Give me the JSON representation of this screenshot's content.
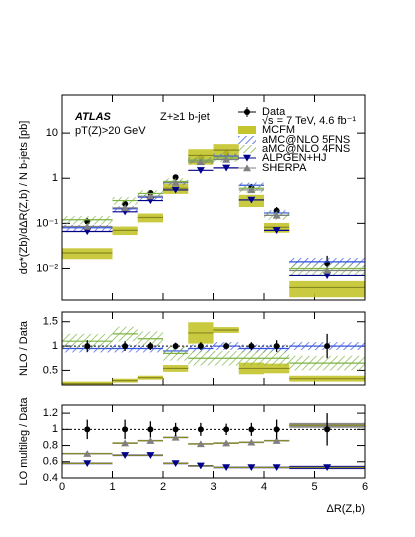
{
  "chart_data": [
    {
      "type": "step",
      "title": "ATLAS",
      "subtitle": "Z+≥1 b-jet",
      "annotation": "pT(Z)>20 GeV",
      "energy": "√s = 7 TeV, 4.6 fb⁻¹",
      "ylabel": "dσ*(Zb)/dΔR(Z,b) / N b-jets [pb]",
      "log_y": true,
      "xlim": [
        0,
        6
      ],
      "ylim": [
        0.002,
        70
      ],
      "yticks": [
        {
          "value": 0.01,
          "label": "10⁻²"
        },
        {
          "value": 0.1,
          "label": "10⁻¹"
        },
        1,
        10
      ],
      "bins": [
        0,
        1,
        1.5,
        2,
        2.5,
        3,
        3.5,
        4,
        4.5,
        6
      ],
      "x": [
        0.5,
        1.25,
        1.75,
        2.25,
        2.75,
        3.25,
        3.75,
        4.25,
        5.25
      ],
      "series": [
        {
          "name": "Data",
          "color": "#000000",
          "marker": "circle",
          "values": [
            0.11,
            0.27,
            0.47,
            1.05,
            2.9,
            3.6,
            0.63,
            0.19,
            0.013
          ],
          "errors": [
            0.02,
            0.05,
            0.08,
            0.15,
            0.6,
            0.8,
            0.12,
            0.04,
            0.006
          ]
        },
        {
          "name": "MCFM",
          "color": "#c4c42c",
          "fill": true,
          "values": [
            0.022,
            0.07,
            0.135,
            0.6,
            3.2,
            4.2,
            0.33,
            0.082,
            0.0038
          ],
          "errors": [
            0.006,
            0.015,
            0.03,
            0.15,
            1.2,
            1.5,
            0.1,
            0.02,
            0.0015
          ]
        },
        {
          "name": "aMC@NLO 5FNS",
          "color": "#3050e0",
          "hatch": true,
          "values": [
            0.08,
            0.21,
            0.38,
            0.8,
            2.5,
            3.1,
            0.7,
            0.17,
            0.014
          ],
          "errors": [
            0.012,
            0.03,
            0.05,
            0.1,
            0.35,
            0.4,
            0.1,
            0.025,
            0.003
          ]
        },
        {
          "name": "aMC@NLO 4FNS",
          "color": "#7cb342",
          "hatch": true,
          "values": [
            0.12,
            0.32,
            0.46,
            0.85,
            2.5,
            2.8,
            0.6,
            0.15,
            0.01
          ],
          "errors": [
            0.025,
            0.06,
            0.08,
            0.15,
            0.5,
            0.5,
            0.12,
            0.03,
            0.003
          ]
        },
        {
          "name": "ALPGEN+HJ",
          "color": "#00008b",
          "marker": "triangle-down",
          "values": [
            0.066,
            0.18,
            0.32,
            0.55,
            1.5,
            1.7,
            0.33,
            0.07,
            0.007
          ]
        },
        {
          "name": "SHERPA",
          "color": "#808080",
          "marker": "triangle-up",
          "values": [
            0.085,
            0.22,
            0.4,
            0.8,
            2.3,
            2.6,
            0.55,
            0.15,
            0.009
          ]
        }
      ]
    },
    {
      "type": "step",
      "ylabel": "NLO / Data",
      "xlim": [
        0,
        6
      ],
      "ylim": [
        0.2,
        1.7
      ],
      "yticks": [
        0.5,
        1,
        1.5
      ],
      "hline": 1,
      "bins": [
        0,
        1,
        1.5,
        2,
        2.5,
        3,
        3.5,
        4,
        4.5,
        6
      ],
      "x": [
        0.5,
        1.25,
        1.75,
        2.25,
        2.75,
        3.25,
        3.75,
        4.25,
        5.25
      ],
      "series": [
        {
          "color": "#c4c42c",
          "fill": true,
          "values": [
            0.23,
            0.29,
            0.35,
            0.54,
            1.27,
            1.33,
            0.54,
            0.54,
            0.33
          ],
          "errors": [
            0.04,
            0.04,
            0.04,
            0.07,
            0.22,
            0.06,
            0.12,
            0.1,
            0.06
          ]
        },
        {
          "color": "#3050e0",
          "hatch": true,
          "values": [
            0.95,
            0.95,
            0.95,
            0.9,
            0.95,
            1.0,
            0.95,
            0.95,
            1.0
          ],
          "errors": [
            0.08,
            0.08,
            0.08,
            0.08,
            0.08,
            0.08,
            0.08,
            0.08,
            0.08
          ]
        },
        {
          "color": "#7cb342",
          "hatch": true,
          "values": [
            1.1,
            1.25,
            1.15,
            0.85,
            0.75,
            0.75,
            0.75,
            0.75,
            0.65
          ],
          "errors": [
            0.15,
            0.15,
            0.15,
            0.15,
            0.15,
            0.15,
            0.15,
            0.15,
            0.15
          ]
        },
        {
          "color": "#000000",
          "marker": "circle",
          "values": [
            1,
            1,
            1,
            1,
            1,
            1,
            1,
            1,
            1
          ],
          "errors": [
            0.12,
            0.1,
            0.08,
            0.07,
            0.08,
            0.07,
            0.08,
            0.12,
            0.25
          ]
        }
      ]
    },
    {
      "type": "step",
      "ylabel": "LO multileg / Data",
      "xlabel": "ΔR(Z,b)",
      "xlim": [
        0,
        6
      ],
      "ylim": [
        0.4,
        1.3
      ],
      "xticks": [
        0,
        1,
        2,
        3,
        4,
        5,
        6
      ],
      "yticks": [
        0.4,
        0.6,
        0.8,
        1,
        1.2
      ],
      "hline": 1,
      "bins": [
        0,
        1,
        1.5,
        2,
        2.5,
        3,
        3.5,
        4,
        4.5,
        6
      ],
      "x": [
        0.5,
        1.25,
        1.75,
        2.25,
        2.75,
        3.25,
        3.75,
        4.25,
        5.25
      ],
      "series": [
        {
          "color": "#00008b",
          "fill": true,
          "marker": "triangle-down",
          "values": [
            0.58,
            0.68,
            0.68,
            0.58,
            0.55,
            0.53,
            0.53,
            0.53,
            0.53
          ],
          "errors": [
            0.01,
            0.01,
            0.01,
            0.01,
            0.01,
            0.01,
            0.01,
            0.01,
            0.02
          ]
        },
        {
          "color": "#808080",
          "fill": true,
          "marker": "triangle-up",
          "values": [
            0.7,
            0.83,
            0.86,
            0.9,
            0.82,
            0.83,
            0.84,
            0.86,
            1.05
          ],
          "errors": [
            0.01,
            0.01,
            0.01,
            0.01,
            0.01,
            0.01,
            0.01,
            0.01,
            0.03
          ]
        },
        {
          "color": "#000000",
          "marker": "circle",
          "values": [
            1,
            1,
            1,
            1,
            1,
            1,
            1,
            1,
            1
          ],
          "errors": [
            0.12,
            0.12,
            0.1,
            0.08,
            0.08,
            0.07,
            0.08,
            0.12,
            0.2
          ]
        }
      ]
    }
  ]
}
